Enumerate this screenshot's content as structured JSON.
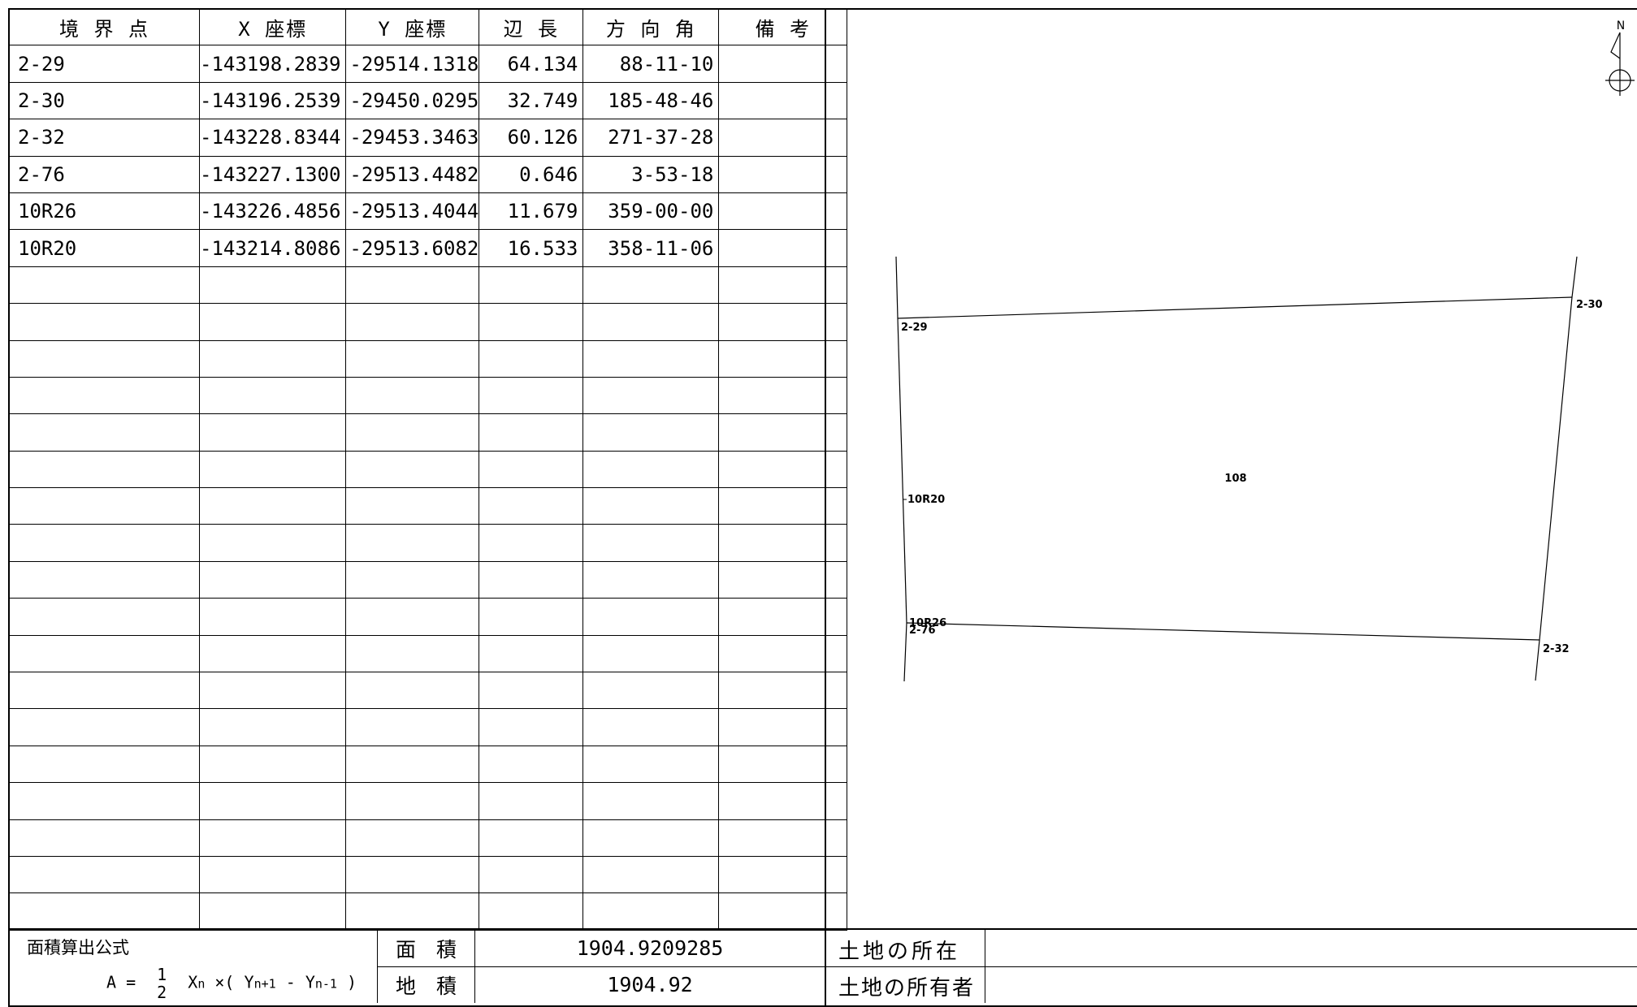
{
  "table": {
    "headers": [
      "境 界 点",
      "X 座標",
      "Y 座標",
      "辺 長",
      "方 向 角",
      "備 考"
    ],
    "rows": [
      {
        "point": "2-29",
        "x": "-143198.2839",
        "y": "-29514.1318",
        "length": "64.134",
        "bearing": "88-11-10",
        "note": ""
      },
      {
        "point": "2-30",
        "x": "-143196.2539",
        "y": "-29450.0295",
        "length": "32.749",
        "bearing": "185-48-46",
        "note": ""
      },
      {
        "point": "2-32",
        "x": "-143228.8344",
        "y": "-29453.3463",
        "length": "60.126",
        "bearing": "271-37-28",
        "note": ""
      },
      {
        "point": "2-76",
        "x": "-143227.1300",
        "y": "-29513.4482",
        "length": "0.646",
        "bearing": "3-53-18",
        "note": ""
      },
      {
        "point": "10R26",
        "x": "-143226.4856",
        "y": "-29513.4044",
        "length": "11.679",
        "bearing": "359-00-00",
        "note": ""
      },
      {
        "point": "10R20",
        "x": "-143214.8086",
        "y": "-29513.6082",
        "length": "16.533",
        "bearing": "358-11-06",
        "note": ""
      }
    ],
    "empty_rows": 18
  },
  "formula": {
    "title": "面積算出公式",
    "lhs": "A =",
    "frac_num": "1",
    "frac_den": "2",
    "rhs_x": "X",
    "rhs_n": "n",
    "rhs_times": "×(",
    "rhs_y1": "Y",
    "rhs_n1": "n+1",
    "rhs_minus": "-",
    "rhs_y2": "Y",
    "rhs_n2": "n-1",
    "rhs_close": ")"
  },
  "area": {
    "menseki_label": "面　積",
    "menseki_value": "1904.9209285",
    "chiseki_label": "地　積",
    "chiseki_value": "1904.92"
  },
  "land": {
    "location_label": "土地の所在",
    "location_value": "",
    "owner_label": "土地の所有者",
    "owner_value": ""
  },
  "plot": {
    "north_label": "N",
    "parcel_label": "108",
    "point_labels": [
      "2-29",
      "2-30",
      "2-32",
      "2-76",
      "10R26",
      "10R20"
    ]
  }
}
